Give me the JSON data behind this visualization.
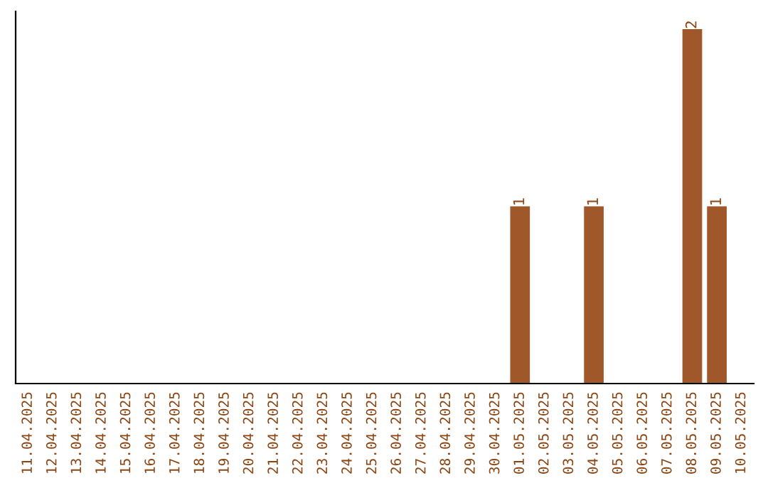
{
  "chart_data": {
    "type": "bar",
    "categories": [
      "11.04.2025",
      "12.04.2025",
      "13.04.2025",
      "14.04.2025",
      "15.04.2025",
      "16.04.2025",
      "17.04.2025",
      "18.04.2025",
      "19.04.2025",
      "20.04.2025",
      "21.04.2025",
      "22.04.2025",
      "23.04.2025",
      "24.04.2025",
      "25.04.2025",
      "26.04.2025",
      "27.04.2025",
      "28.04.2025",
      "29.04.2025",
      "30.04.2025",
      "01.05.2025",
      "02.05.2025",
      "03.05.2025",
      "04.05.2025",
      "05.05.2025",
      "06.05.2025",
      "07.05.2025",
      "08.05.2025",
      "09.05.2025",
      "10.05.2025"
    ],
    "values": [
      null,
      null,
      null,
      null,
      null,
      null,
      null,
      null,
      null,
      null,
      null,
      null,
      null,
      null,
      null,
      null,
      null,
      null,
      null,
      null,
      1,
      null,
      null,
      1,
      null,
      null,
      null,
      2,
      1,
      null
    ],
    "value_labels": [
      null,
      null,
      null,
      null,
      null,
      null,
      null,
      null,
      null,
      null,
      null,
      null,
      null,
      null,
      null,
      null,
      null,
      null,
      null,
      null,
      "1",
      null,
      null,
      "1",
      null,
      null,
      null,
      "2",
      "1",
      null
    ],
    "color": "#a0572a",
    "ylim": [
      0,
      2.1
    ],
    "tick_labels": "x"
  }
}
